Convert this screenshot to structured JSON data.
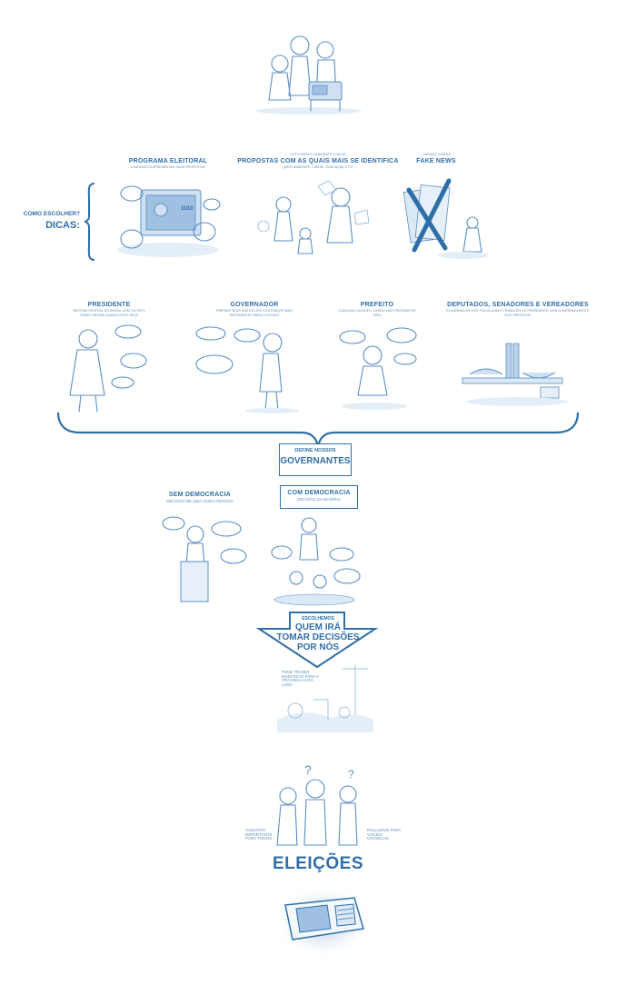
{
  "dicas": {
    "question": "COMO ESCOLHER?",
    "answer": "DICAS:"
  },
  "tips": [
    {
      "title": "PROGRAMA ELEITORAL",
      "sub": "CANDIDATOS APRESENTAM SUAS PROPOSTAS"
    },
    {
      "title": "PROPOSTAS COM AS QUAIS MAIS SE IDENTIFICA",
      "sub_top": "VOTO PARA O CANDIDATO COM AS",
      "sub": "(MEIO AMBIENTE, CIDADE, EDUCAÇÃO ETC)"
    },
    {
      "title": "FAKE NEWS",
      "sub_top": "CUIDADO COM AS"
    }
  ],
  "offices": [
    {
      "title": "PRESIDENTE",
      "sub": "SISTEMA CENTRAL DO BRASIL COM OUTROS PAÍSES MESMA QUANDO ESTE SEJA"
    },
    {
      "title": "GOVERNADOR",
      "sub": "PRESIDE SEUS GASTOS ATÉ OS ESTADOS MAIS PERTINENTES PARA O ESTADO"
    },
    {
      "title": "PREFEITO",
      "sub": "CUIDA DAS CIDADES, CARGO MAIS PRÓXIMO DE NÓS"
    },
    {
      "title": "DEPUTADOS, SENADORES E VEREADORES",
      "sub": "ELABORAM AS LEIS, FISCALIZAM O TRABALHO DO PRESIDENTE, DOS GOVERNADORES E DOS PREFEITOS"
    }
  ],
  "define": {
    "small": "DEFINE NOSSOS",
    "big": "GOVERNANTES"
  },
  "sem_democracia": {
    "title": "SEM DEMOCRACIA",
    "sub": "DECISÃO DE UMA ÚNICA PESSOA"
  },
  "com_democracia": {
    "title": "COM DEMOCRACIA",
    "sub": "DECISÃO DA MAIORIA"
  },
  "arrow": {
    "small": "ESCOLHEMOS",
    "line1": "QUEM IRÁ",
    "line2": "TOMAR DECISÕES",
    "line3": "POR NÓS"
  },
  "mudancas": "PODE TRAZER MUDANÇAS PARA A PRACINHA AÍ DO LADO",
  "assunto": "ASSUNTO IMPORTANTE PARA TODOS",
  "inclusive": "INCLUSIVE PARA VOCÊS, CRIANÇAS",
  "eleicoes": "ELEIÇÕES",
  "colors": {
    "primary": "#2f6fa8",
    "sketch": "#5b8fc3",
    "light": "#cfe0f2"
  }
}
